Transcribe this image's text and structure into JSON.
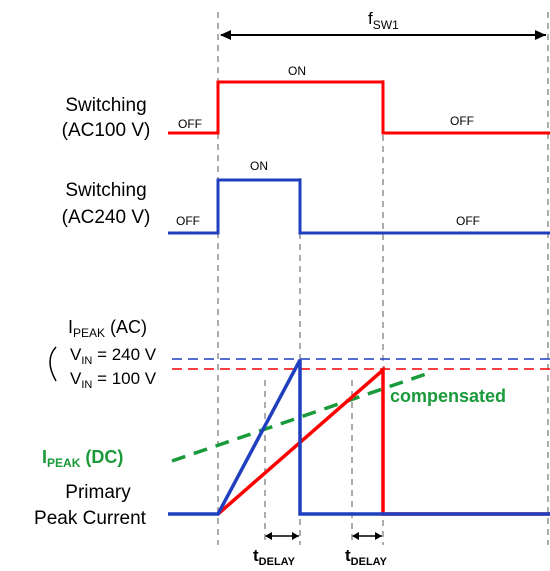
{
  "period_label": {
    "main": "f",
    "sub": "SW1"
  },
  "signals": {
    "ac100": {
      "label_line1": "Switching",
      "label_line2": "(AC100 V)",
      "off_left": "OFF",
      "on": "ON",
      "off_right": "OFF"
    },
    "ac240": {
      "label_line1": "Switching",
      "label_line2": "(AC240 V)",
      "off_left": "OFF",
      "on": "ON",
      "off_right": "OFF"
    }
  },
  "ipeak_ac": {
    "title_main": "I",
    "title_sub": "PEAK",
    "title_rest": " (AC)",
    "vin240": {
      "main": "V",
      "sub": "IN",
      "rest": " = 240 V"
    },
    "vin100": {
      "main": "V",
      "sub": "IN",
      "rest": " = 100 V"
    }
  },
  "compensated_label": "compensated",
  "ipeak_dc": {
    "main": "I",
    "sub": "PEAK",
    "rest": " (DC)"
  },
  "primary_label": {
    "line1": "Primary",
    "line2": "Peak Current"
  },
  "delay_labels": [
    {
      "main": "t",
      "sub": "DELAY"
    },
    {
      "main": "t",
      "sub": "DELAY"
    }
  ],
  "colors": {
    "ac100": "#ff0000",
    "ac240": "#1f3fbf",
    "compensated": "#1a9a3a",
    "guide": "#808080",
    "text": "#000000"
  }
}
